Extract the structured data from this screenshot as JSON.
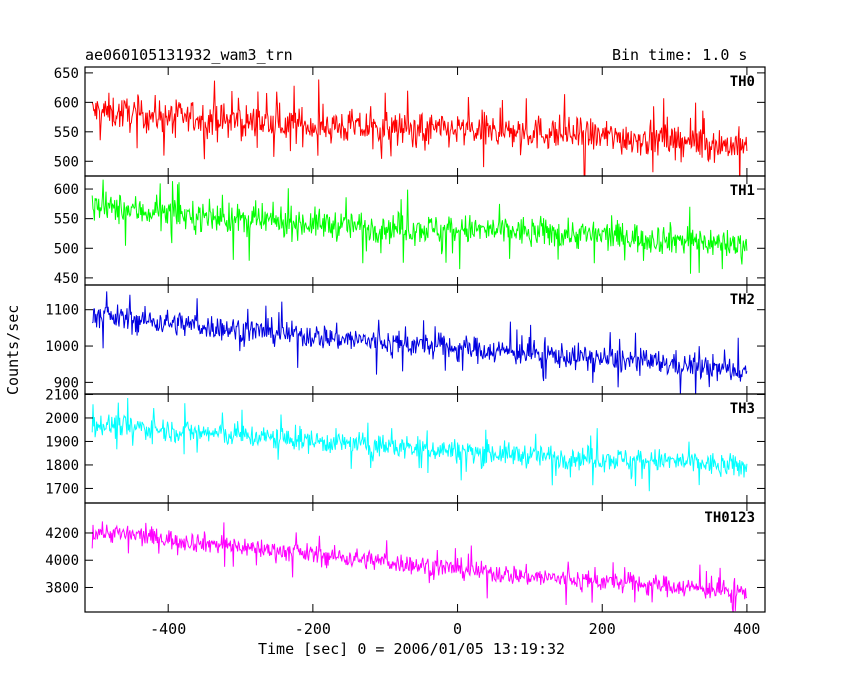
{
  "chart_data": {
    "type": "line",
    "title": "ae060105131932_wam3_trn",
    "subtitle": "Bin time: 1.0 s",
    "xlabel": "Time [sec] 0 = 2006/01/05 13:19:32",
    "ylabel": "Counts/sec",
    "xlim": [
      -515,
      425
    ],
    "xticks": [
      -400,
      -200,
      0,
      200,
      400
    ],
    "panels": [
      {
        "name": "TH0",
        "color": "#ff0000",
        "ylim": [
          475,
          660
        ],
        "yticks": [
          500,
          550,
          600,
          650
        ],
        "trend": {
          "x": [
            -505,
            -300,
            -100,
            100,
            300,
            400
          ],
          "y": [
            585,
            567,
            555,
            550,
            535,
            525
          ]
        },
        "noise": 38
      },
      {
        "name": "TH1",
        "color": "#00ff00",
        "ylim": [
          438,
          622
        ],
        "yticks": [
          450,
          500,
          550,
          600
        ],
        "trend": {
          "x": [
            -505,
            -300,
            -100,
            100,
            300,
            400
          ],
          "y": [
            570,
            548,
            535,
            528,
            515,
            505
          ]
        },
        "noise": 33
      },
      {
        "name": "TH2",
        "color": "#0000e0",
        "ylim": [
          868,
          1168
        ],
        "yticks": [
          900,
          1000,
          1100
        ],
        "trend": {
          "x": [
            -505,
            -300,
            -100,
            100,
            300,
            400
          ],
          "y": [
            1085,
            1045,
            1010,
            980,
            950,
            930
          ]
        },
        "noise": 45
      },
      {
        "name": "TH3",
        "color": "#00ffff",
        "ylim": [
          1638,
          2102
        ],
        "yticks": [
          1700,
          1800,
          1900,
          2000,
          2100
        ],
        "trend": {
          "x": [
            -505,
            -300,
            -100,
            100,
            300,
            400
          ],
          "y": [
            1975,
            1925,
            1880,
            1840,
            1815,
            1790
          ]
        },
        "noise": 65
      },
      {
        "name": "TH0123",
        "color": "#ff00ff",
        "ylim": [
          3620,
          4420
        ],
        "yticks": [
          3800,
          4000,
          4200
        ],
        "trend": {
          "x": [
            -505,
            -300,
            -100,
            100,
            300,
            400
          ],
          "y": [
            4215,
            4100,
            3990,
            3880,
            3810,
            3760
          ]
        },
        "noise": 95
      }
    ]
  }
}
